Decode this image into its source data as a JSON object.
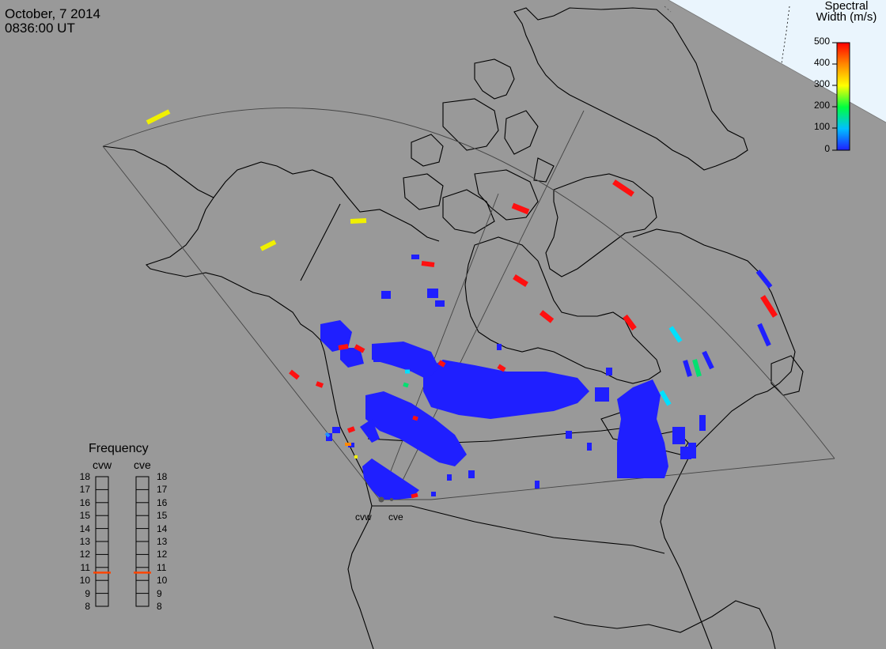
{
  "header": {
    "date": "October, 7 2014",
    "time": "0836:00 UT"
  },
  "colorbar": {
    "title_line1": "Spectral",
    "title_line2": "Width (m/s)",
    "ticks": [
      "500",
      "400",
      "300",
      "200",
      "100",
      "0"
    ],
    "range": [
      0,
      500
    ],
    "colors": [
      "#1f1fff",
      "#00bfff",
      "#00ff40",
      "#ffff00",
      "#ff8800",
      "#ff0000"
    ]
  },
  "frequency_panel": {
    "title": "Frequency",
    "radars": [
      {
        "name": "cvw",
        "value_mhz": 10.6
      },
      {
        "name": "cve",
        "value_mhz": 10.6
      }
    ],
    "scale": [
      "18",
      "17",
      "16",
      "15",
      "14",
      "13",
      "12",
      "11",
      "10",
      "9",
      "8"
    ],
    "marker_color": "#ff4400"
  },
  "stations": {
    "west": "cvw",
    "east": "cve"
  },
  "colors": {
    "background": "#999999",
    "night_boundary": "#e6f3ff",
    "scatter_low": "#1f1fff"
  }
}
